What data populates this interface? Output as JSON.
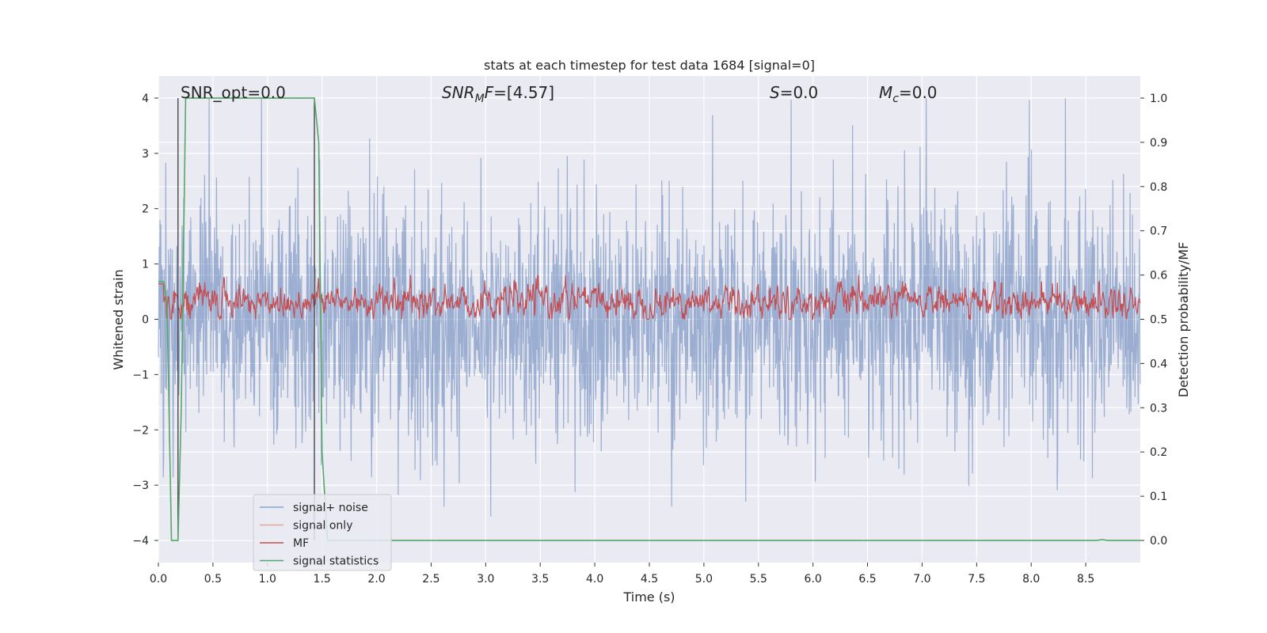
{
  "chart_data": {
    "type": "line",
    "title": "stats at each timestep for test data 1684 [signal=0]",
    "xlabel": "Time (s)",
    "ylabel": "Whitened strain",
    "y2label": "Detection probability/MF",
    "xlim": [
      0.0,
      9.0
    ],
    "ylim": [
      -4.4,
      4.4
    ],
    "y2lim": [
      -0.05,
      1.05
    ],
    "xticks": [
      "0.0",
      "0.5",
      "1.0",
      "1.5",
      "2.0",
      "2.5",
      "3.0",
      "3.5",
      "4.0",
      "4.5",
      "5.0",
      "5.5",
      "6.0",
      "6.5",
      "7.0",
      "7.5",
      "8.0",
      "8.5"
    ],
    "yticks": [
      "4",
      "3",
      "2",
      "1",
      "0",
      "−1",
      "−2",
      "−3",
      "−4"
    ],
    "y2ticks": [
      "1.0",
      "0.9",
      "0.8",
      "0.7",
      "0.6",
      "0.5",
      "0.4",
      "0.3",
      "0.2",
      "0.1",
      "0.0"
    ],
    "grid": true,
    "annotations": {
      "snr_opt": "SNR_opt=0.0",
      "snr_mf": "SNR_MF=[4.57]",
      "s": "S=0.0",
      "mc": "M_c=0.0"
    },
    "vlines_x": [
      0.18,
      1.43
    ],
    "legend_position": "lower-left",
    "series": [
      {
        "name": "signal+ noise",
        "color": "#4c72b0",
        "description_axis": "left",
        "envelope": "noise band between about -2.5 and 3.8 with rare spikes to ±4"
      },
      {
        "name": "signal only",
        "color": "#dd8452",
        "description_axis": "left",
        "values": []
      },
      {
        "name": "MF",
        "color": "#c44e52",
        "description_axis": "right",
        "range": [
          0.5,
          0.6
        ]
      },
      {
        "name": "signal statistics",
        "color": "#55a868",
        "description_axis": "right",
        "points": [
          [
            0.0,
            0.585
          ],
          [
            0.05,
            0.585
          ],
          [
            0.08,
            0.53
          ],
          [
            0.12,
            0.0
          ],
          [
            0.18,
            0.0
          ],
          [
            0.21,
            0.3
          ],
          [
            0.25,
            1.0
          ],
          [
            1.43,
            1.0
          ],
          [
            1.47,
            0.9
          ],
          [
            1.5,
            0.2
          ],
          [
            1.55,
            0.0
          ],
          [
            8.6,
            0.0
          ],
          [
            8.65,
            0.002
          ],
          [
            8.7,
            0.0
          ],
          [
            9.0,
            0.0
          ]
        ]
      }
    ],
    "legend": [
      "signal+ noise",
      "signal only",
      "MF",
      "signal statistics"
    ]
  }
}
